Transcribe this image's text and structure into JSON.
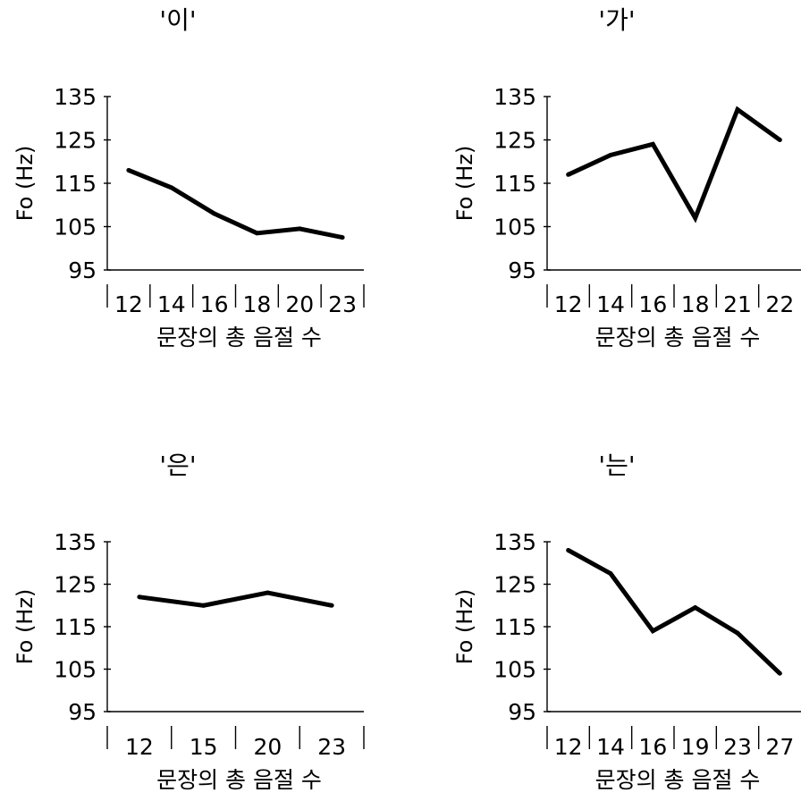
{
  "chart_data": [
    {
      "type": "line",
      "title": "'이'",
      "ylabel": "Fo (Hz)",
      "xlabel": "문장의 총 음절 수",
      "ylim": [
        95,
        135
      ],
      "yticks": [
        "135",
        "125",
        "115",
        "105",
        "95"
      ],
      "categories": [
        "12",
        "14",
        "16",
        "18",
        "20",
        "23"
      ],
      "series": [
        {
          "values": [
            118,
            114,
            108,
            103.5,
            104.5,
            102.5
          ]
        }
      ]
    },
    {
      "type": "line",
      "title": "'가'",
      "ylabel": "Fo (Hz)",
      "xlabel": "문장의 총 음절 수",
      "ylim": [
        95,
        135
      ],
      "yticks": [
        "135",
        "125",
        "115",
        "105",
        "95"
      ],
      "categories": [
        "12",
        "14",
        "16",
        "18",
        "21",
        "22"
      ],
      "series": [
        {
          "values": [
            117,
            121.5,
            124,
            107,
            132,
            125
          ]
        }
      ]
    },
    {
      "type": "line",
      "title": "'은'",
      "ylabel": "Fo (Hz)",
      "xlabel": "문장의 총 음절 수",
      "ylim": [
        95,
        135
      ],
      "yticks": [
        "135",
        "125",
        "115",
        "105",
        "95"
      ],
      "categories": [
        "12",
        "15",
        "20",
        "23"
      ],
      "series": [
        {
          "values": [
            122,
            120,
            123,
            120
          ]
        }
      ]
    },
    {
      "type": "line",
      "title": "'는'",
      "ylabel": "Fo (Hz)",
      "xlabel": "문장의 총 음절 수",
      "ylim": [
        95,
        135
      ],
      "yticks": [
        "135",
        "125",
        "115",
        "105",
        "95"
      ],
      "categories": [
        "12",
        "14",
        "16",
        "19",
        "23",
        "27"
      ],
      "series": [
        {
          "values": [
            133,
            127.5,
            114,
            119.5,
            113.5,
            104
          ]
        }
      ]
    }
  ]
}
